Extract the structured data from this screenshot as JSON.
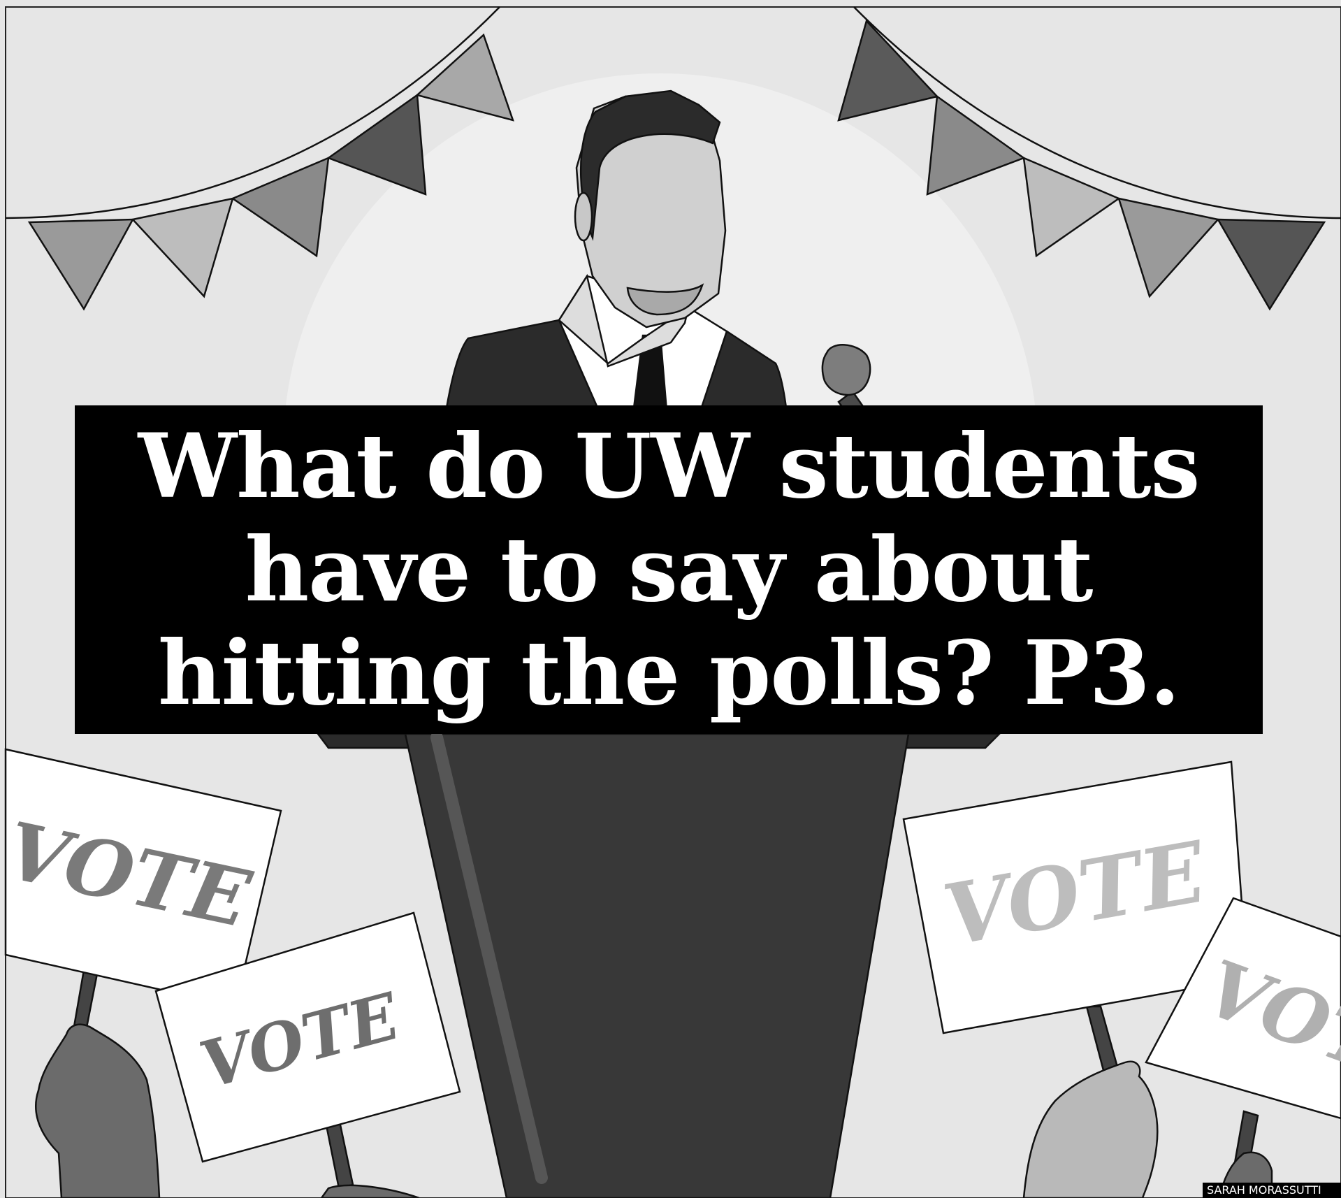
{
  "headline": {
    "lines": [
      "What do UW students",
      "have to say about",
      "hitting the polls? P3."
    ]
  },
  "signs": {
    "sign_1_label": "VOTE",
    "sign_2_label": "VOTE",
    "sign_3_label": "VOTE",
    "sign_4_label": "VOT"
  },
  "credit": "SARAH MORASSUTTI",
  "colors": {
    "background": "#e6e6e6",
    "halo": "#efefef",
    "suit": "#2b2b2b",
    "podium": "#383838",
    "headline_box": "#000000",
    "headline_text": "#ffffff"
  }
}
